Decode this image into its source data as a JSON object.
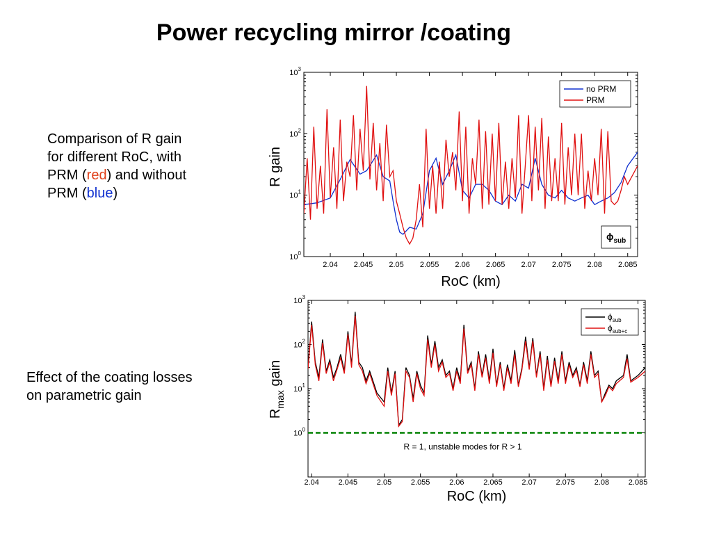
{
  "title": "Power recycling mirror /coating",
  "caption_top": {
    "line1": "Comparison of R gain",
    "line2": "for different RoC, with",
    "line3_a": "PRM (",
    "line3_red": "red",
    "line3_b": ") and without",
    "line4_a": "PRM (",
    "line4_blue": "blue",
    "line4_b": ")"
  },
  "caption_bottom": {
    "line1": "Effect of the coating losses",
    "line2": "on parametric gain"
  },
  "colors": {
    "red": "#e01010",
    "blue": "#1030d0",
    "black": "#000000",
    "green": "#008000"
  },
  "chart_data": [
    {
      "type": "line",
      "xlabel": "RoC (km)",
      "ylabel": "R gain",
      "xlim": [
        2.036,
        2.0865
      ],
      "ylim": [
        1,
        1000
      ],
      "yscale": "log",
      "xticks": [
        "2.04",
        "2.045",
        "2.05",
        "2.055",
        "2.06",
        "2.065",
        "2.07",
        "2.075",
        "2.08",
        "2.085"
      ],
      "yticks": [
        {
          "base": "10",
          "exp": "0"
        },
        {
          "base": "10",
          "exp": "1"
        },
        {
          "base": "10",
          "exp": "2"
        },
        {
          "base": "10",
          "exp": "3"
        }
      ],
      "legend": "top-right",
      "box_label": "ϕ",
      "box_label_sub": "sub",
      "series": [
        {
          "name": "no PRM",
          "color": "#1030d0",
          "x": [
            2.036,
            2.038,
            2.04,
            2.0415,
            2.043,
            2.0445,
            2.0455,
            2.047,
            2.048,
            2.049,
            2.0495,
            2.05,
            2.0505,
            2.051,
            2.052,
            2.053,
            2.054,
            2.055,
            2.056,
            2.057,
            2.058,
            2.059,
            2.06,
            2.061,
            2.062,
            2.063,
            2.064,
            2.065,
            2.066,
            2.067,
            2.068,
            2.069,
            2.07,
            2.071,
            2.072,
            2.073,
            2.074,
            2.075,
            2.076,
            2.077,
            2.078,
            2.079,
            2.08,
            2.081,
            2.082,
            2.083,
            2.084,
            2.085,
            2.0865
          ],
          "y": [
            7,
            7.5,
            9,
            18,
            38,
            22,
            25,
            45,
            20,
            17,
            8,
            4,
            2.5,
            2.3,
            3,
            2.8,
            5,
            25,
            40,
            15,
            25,
            45,
            12,
            9,
            15,
            15,
            12,
            8,
            7,
            10,
            8,
            15,
            13,
            40,
            15,
            10,
            9,
            12,
            9,
            8,
            9,
            10,
            7,
            8,
            9,
            11,
            16,
            30,
            50
          ]
        },
        {
          "name": "PRM",
          "color": "#e01010",
          "x": [
            2.036,
            2.0365,
            2.037,
            2.0375,
            2.038,
            2.0385,
            2.039,
            2.0395,
            2.04,
            2.0405,
            2.041,
            2.0415,
            2.042,
            2.0425,
            2.043,
            2.0435,
            2.044,
            2.0445,
            2.045,
            2.0455,
            2.046,
            2.0465,
            2.047,
            2.0475,
            2.048,
            2.0485,
            2.049,
            2.0495,
            2.05,
            2.0505,
            2.051,
            2.0515,
            2.052,
            2.0525,
            2.053,
            2.0535,
            2.054,
            2.0545,
            2.055,
            2.0555,
            2.056,
            2.0565,
            2.057,
            2.0575,
            2.058,
            2.0585,
            2.059,
            2.0595,
            2.06,
            2.0605,
            2.061,
            2.0615,
            2.062,
            2.0625,
            2.063,
            2.0635,
            2.064,
            2.0645,
            2.065,
            2.0655,
            2.066,
            2.0665,
            2.067,
            2.0675,
            2.068,
            2.0685,
            2.069,
            2.0695,
            2.07,
            2.0705,
            2.071,
            2.0715,
            2.072,
            2.0725,
            2.073,
            2.0735,
            2.074,
            2.0745,
            2.075,
            2.0755,
            2.076,
            2.0765,
            2.077,
            2.0775,
            2.078,
            2.0785,
            2.079,
            2.0795,
            2.08,
            2.0805,
            2.081,
            2.0815,
            2.082,
            2.0825,
            2.083,
            2.0835,
            2.084,
            2.0845,
            2.085,
            2.0865
          ],
          "y": [
            5,
            40,
            4,
            130,
            6,
            30,
            5,
            250,
            9,
            60,
            6,
            170,
            8,
            35,
            20,
            200,
            12,
            120,
            25,
            600,
            18,
            150,
            12,
            70,
            8,
            140,
            20,
            25,
            8,
            5,
            3,
            2,
            1.6,
            2,
            4,
            15,
            3,
            120,
            6,
            30,
            5,
            35,
            6,
            80,
            20,
            50,
            12,
            230,
            8,
            130,
            5,
            40,
            15,
            170,
            6,
            110,
            7,
            100,
            8,
            150,
            7,
            35,
            6,
            40,
            9,
            200,
            5,
            30,
            200,
            8,
            130,
            12,
            180,
            6,
            90,
            8,
            40,
            8,
            150,
            7,
            60,
            10,
            100,
            10,
            100,
            6,
            25,
            8,
            40,
            10,
            120,
            5,
            110,
            8,
            7,
            8,
            12,
            20,
            15,
            30
          ]
        }
      ]
    },
    {
      "type": "line",
      "xlabel": "RoC (km)",
      "ylabel": "R",
      "ylabel_sub": "max",
      "ylabel_tail": "gain",
      "xlim": [
        2.0395,
        2.086
      ],
      "ylim": [
        0.1,
        1000
      ],
      "yscale": "log",
      "xticks": [
        "2.04",
        "2.045",
        "2.05",
        "2.055",
        "2.06",
        "2.065",
        "2.07",
        "2.075",
        "2.08",
        "2.085"
      ],
      "yticks": [
        {
          "base": "10",
          "exp": "0"
        },
        {
          "base": "10",
          "exp": "1"
        },
        {
          "base": "10",
          "exp": "2"
        },
        {
          "base": "10",
          "exp": "3"
        }
      ],
      "legend": "top-right",
      "annotation": "R = 1, unstable modes for R > 1",
      "threshold": 1,
      "series": [
        {
          "name": "ϕ",
          "name_sub": "sub",
          "color": "#000000",
          "x": [
            2.0395,
            2.04,
            2.0405,
            2.041,
            2.0415,
            2.042,
            2.0425,
            2.043,
            2.0435,
            2.044,
            2.0445,
            2.045,
            2.0455,
            2.046,
            2.0465,
            2.047,
            2.0475,
            2.048,
            2.049,
            2.05,
            2.0505,
            2.051,
            2.0515,
            2.052,
            2.0525,
            2.053,
            2.0535,
            2.054,
            2.0545,
            2.055,
            2.0555,
            2.056,
            2.0565,
            2.057,
            2.0575,
            2.058,
            2.0585,
            2.059,
            2.0595,
            2.06,
            2.0605,
            2.061,
            2.0615,
            2.062,
            2.0625,
            2.063,
            2.0635,
            2.064,
            2.0645,
            2.065,
            2.0655,
            2.066,
            2.0665,
            2.067,
            2.0675,
            2.068,
            2.0685,
            2.069,
            2.0695,
            2.07,
            2.0705,
            2.071,
            2.0715,
            2.072,
            2.0725,
            2.073,
            2.0735,
            2.074,
            2.0745,
            2.075,
            2.0755,
            2.076,
            2.0765,
            2.077,
            2.0775,
            2.078,
            2.0785,
            2.079,
            2.0795,
            2.08,
            2.0805,
            2.081,
            2.0815,
            2.082,
            2.083,
            2.0835,
            2.084,
            2.085,
            2.086
          ],
          "y": [
            30,
            330,
            40,
            18,
            130,
            25,
            45,
            18,
            30,
            60,
            25,
            200,
            35,
            550,
            40,
            30,
            15,
            25,
            8,
            5,
            30,
            8,
            25,
            1.5,
            2,
            30,
            20,
            6,
            25,
            12,
            8,
            160,
            35,
            120,
            30,
            45,
            20,
            25,
            10,
            30,
            15,
            280,
            25,
            40,
            10,
            70,
            20,
            60,
            15,
            80,
            12,
            40,
            10,
            35,
            15,
            75,
            12,
            30,
            150,
            30,
            140,
            20,
            70,
            10,
            55,
            12,
            50,
            15,
            70,
            15,
            40,
            20,
            30,
            12,
            40,
            15,
            70,
            20,
            25,
            5,
            8,
            12,
            10,
            15,
            20,
            60,
            15,
            20,
            30
          ]
        },
        {
          "name": "ϕ",
          "name_sub": "sub+c",
          "color": "#e01010",
          "x": [
            2.0395,
            2.04,
            2.0405,
            2.041,
            2.0415,
            2.042,
            2.0425,
            2.043,
            2.0435,
            2.044,
            2.0445,
            2.045,
            2.0455,
            2.046,
            2.0465,
            2.047,
            2.0475,
            2.048,
            2.049,
            2.05,
            2.0505,
            2.051,
            2.0515,
            2.052,
            2.0525,
            2.053,
            2.0535,
            2.054,
            2.0545,
            2.055,
            2.0555,
            2.056,
            2.0565,
            2.057,
            2.0575,
            2.058,
            2.0585,
            2.059,
            2.0595,
            2.06,
            2.0605,
            2.061,
            2.0615,
            2.062,
            2.0625,
            2.063,
            2.0635,
            2.064,
            2.0645,
            2.065,
            2.0655,
            2.066,
            2.0665,
            2.067,
            2.0675,
            2.068,
            2.0685,
            2.069,
            2.0695,
            2.07,
            2.0705,
            2.071,
            2.0715,
            2.072,
            2.0725,
            2.073,
            2.0735,
            2.074,
            2.0745,
            2.075,
            2.0755,
            2.076,
            2.0765,
            2.077,
            2.0775,
            2.078,
            2.0785,
            2.079,
            2.0795,
            2.08,
            2.0805,
            2.081,
            2.0815,
            2.082,
            2.083,
            2.0835,
            2.084,
            2.085,
            2.086
          ],
          "y": [
            28,
            280,
            35,
            15,
            110,
            22,
            40,
            15,
            27,
            50,
            22,
            170,
            30,
            450,
            35,
            25,
            13,
            22,
            7,
            4,
            25,
            7,
            22,
            1.4,
            1.8,
            25,
            18,
            5,
            22,
            10,
            7,
            130,
            30,
            100,
            25,
            40,
            18,
            22,
            9,
            25,
            13,
            230,
            22,
            35,
            9,
            60,
            18,
            50,
            13,
            65,
            11,
            35,
            9,
            30,
            13,
            60,
            11,
            27,
            120,
            27,
            120,
            18,
            60,
            9,
            45,
            11,
            42,
            13,
            60,
            13,
            35,
            18,
            26,
            11,
            35,
            13,
            60,
            18,
            22,
            5,
            7,
            11,
            9,
            13,
            18,
            48,
            14,
            18,
            25
          ]
        }
      ]
    }
  ]
}
